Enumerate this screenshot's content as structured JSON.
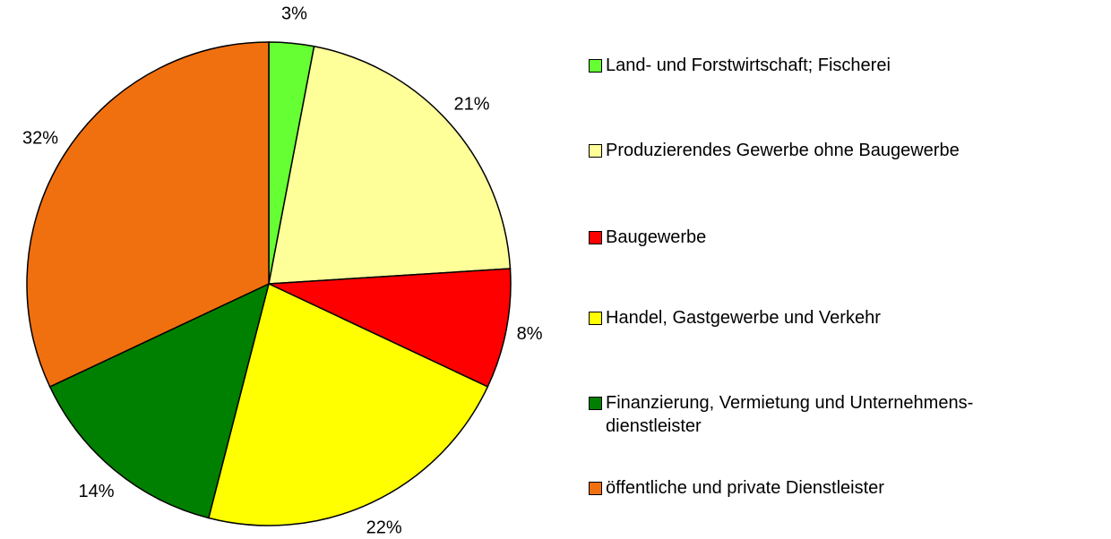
{
  "chart_data": {
    "type": "pie",
    "categories": [
      "Land- und Forstwirtschaft; Fischerei",
      "Produzierendes Gewerbe ohne Baugewerbe",
      "Baugewerbe",
      "Handel, Gastgewerbe und Verkehr",
      "Finanzierung, Vermietung und Unternehmens-\ndienstleister",
      "öffentliche und private Dienstleister"
    ],
    "values": [
      3,
      21,
      8,
      22,
      14,
      32
    ],
    "value_labels": [
      "3%",
      "21%",
      "8%",
      "22%",
      "14%",
      "32%"
    ],
    "colors": [
      "#66ff33",
      "#ffff99",
      "#ff0000",
      "#ffff00",
      "#008000",
      "#f07010"
    ],
    "legend": "right"
  }
}
